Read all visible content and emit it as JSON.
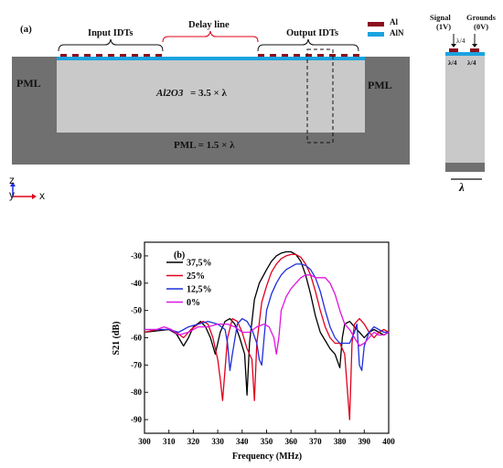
{
  "panel_a": {
    "label": "(a)",
    "input_idts": "Input IDTs",
    "delay_line": "Delay line",
    "output_idts": "Output IDTs",
    "pml_left": "PML",
    "pml_right": "PML",
    "substrate_label": "Al2O3",
    "substrate_eq": "= 3.5 × λ",
    "pml_bottom": "PML = 1.5 × λ",
    "legend": [
      {
        "name": "Al",
        "color": "#8b0f1f"
      },
      {
        "name": "AlN",
        "color": "#1aa3e0"
      }
    ],
    "axes": {
      "z": "z",
      "y": "y",
      "x": "x"
    },
    "unit_cell": {
      "signal": "Signal",
      "signal_v": "(1V)",
      "grounds": "Grounds",
      "grounds_v": "(0V)",
      "quarter": "λ/4",
      "quarter_left": "λ/4",
      "quarter_right": "λ/4",
      "lambda": "λ"
    }
  },
  "panel_b": {
    "label": "(b)",
    "chart_data": {
      "type": "line",
      "title": "",
      "xlabel": "Frequency (MHz)",
      "ylabel": "S21 (dB)",
      "xlim": [
        300,
        400
      ],
      "ylim": [
        -95,
        -25
      ],
      "xticks": [
        300,
        310,
        320,
        330,
        340,
        350,
        360,
        370,
        380,
        390,
        400
      ],
      "yticks": [
        -30,
        -40,
        -50,
        -60,
        -70,
        -80,
        -90
      ],
      "legend_position": "top-left",
      "series": [
        {
          "name": "37,5%",
          "color": "#000000",
          "x": [
            300,
            305,
            310,
            313,
            316,
            318,
            320,
            323,
            325,
            327,
            329,
            331,
            333,
            335,
            337,
            339,
            341,
            342,
            343,
            345,
            347,
            350,
            352,
            354,
            356,
            358,
            360,
            362,
            364,
            366,
            368,
            370,
            372,
            374,
            376,
            378,
            380,
            381,
            382,
            384,
            386,
            388,
            390,
            392,
            394,
            396,
            398,
            400
          ],
          "y": [
            -58,
            -57.5,
            -57,
            -58.5,
            -63,
            -60,
            -56,
            -54,
            -56,
            -60,
            -66,
            -58,
            -54,
            -53,
            -55,
            -60,
            -66,
            -81,
            -62,
            -46,
            -40,
            -35,
            -32,
            -30,
            -29,
            -28.5,
            -28.5,
            -29.5,
            -32,
            -37,
            -44,
            -52,
            -58,
            -61,
            -64,
            -66,
            -71,
            -60,
            -55,
            -54,
            -56,
            -58,
            -60,
            -58,
            -57,
            -58,
            -59,
            -58
          ]
        },
        {
          "name": "25%",
          "color": "#e0001b",
          "x": [
            300,
            305,
            310,
            313,
            316,
            319,
            322,
            324,
            326,
            328,
            330,
            331,
            332,
            334,
            336,
            338,
            340,
            342,
            344,
            345,
            346,
            348,
            350,
            352,
            354,
            356,
            358,
            360,
            362,
            364,
            366,
            368,
            370,
            372,
            374,
            376,
            378,
            380,
            382,
            383,
            384,
            385,
            386,
            388,
            390,
            392,
            394,
            396,
            398,
            400
          ],
          "y": [
            -58,
            -57,
            -57,
            -58,
            -60,
            -57,
            -55,
            -54,
            -55,
            -60,
            -68,
            -75,
            -83,
            -60,
            -53,
            -54,
            -58,
            -64,
            -68,
            -83,
            -62,
            -47,
            -41,
            -36,
            -33,
            -31,
            -30,
            -29.5,
            -29.5,
            -30.5,
            -33,
            -37,
            -43,
            -50,
            -56,
            -60,
            -62,
            -62,
            -66,
            -78,
            -90,
            -62,
            -55,
            -53,
            -55,
            -58,
            -60,
            -58,
            -57,
            -58
          ]
        },
        {
          "name": "12,5%",
          "color": "#1f2ee0",
          "x": [
            300,
            305,
            310,
            314,
            318,
            322,
            326,
            330,
            333,
            334,
            335,
            336,
            338,
            340,
            342,
            344,
            346,
            347,
            348,
            349,
            350,
            352,
            354,
            356,
            358,
            360,
            362,
            364,
            366,
            368,
            370,
            372,
            374,
            376,
            378,
            380,
            382,
            384,
            386,
            387,
            388,
            389,
            390,
            392,
            394,
            396,
            398,
            400
          ],
          "y": [
            -57,
            -57,
            -57,
            -58,
            -56,
            -55,
            -54,
            -55,
            -57,
            -62,
            -72,
            -66,
            -55,
            -53,
            -54,
            -57,
            -62,
            -68,
            -70,
            -60,
            -50,
            -44,
            -40,
            -37,
            -35,
            -34,
            -33,
            -33,
            -33.5,
            -35,
            -38,
            -43,
            -50,
            -56,
            -60,
            -62,
            -62,
            -62,
            -58,
            -55,
            -70,
            -72,
            -63,
            -58,
            -56,
            -57,
            -58,
            -58
          ]
        },
        {
          "name": "0%",
          "color": "#e014e0",
          "x": [
            300,
            305,
            308,
            311,
            314,
            318,
            322,
            326,
            330,
            334,
            337,
            340,
            343,
            346,
            349,
            351,
            353,
            354,
            355,
            356,
            358,
            360,
            362,
            364,
            366,
            368,
            370,
            372,
            374,
            376,
            378,
            380,
            382,
            384,
            386,
            388,
            390,
            392,
            394,
            396,
            398,
            400
          ],
          "y": [
            -57,
            -57,
            -56,
            -57,
            -59,
            -58,
            -56,
            -56,
            -55,
            -55,
            -56,
            -58,
            -58,
            -56,
            -55,
            -56,
            -60,
            -66,
            -60,
            -50,
            -45,
            -42,
            -40,
            -38,
            -37,
            -37,
            -38,
            -38,
            -38,
            -40,
            -44,
            -50,
            -55,
            -57,
            -60,
            -63,
            -62,
            -60,
            -58,
            -59,
            -59,
            -58
          ]
        }
      ]
    }
  }
}
